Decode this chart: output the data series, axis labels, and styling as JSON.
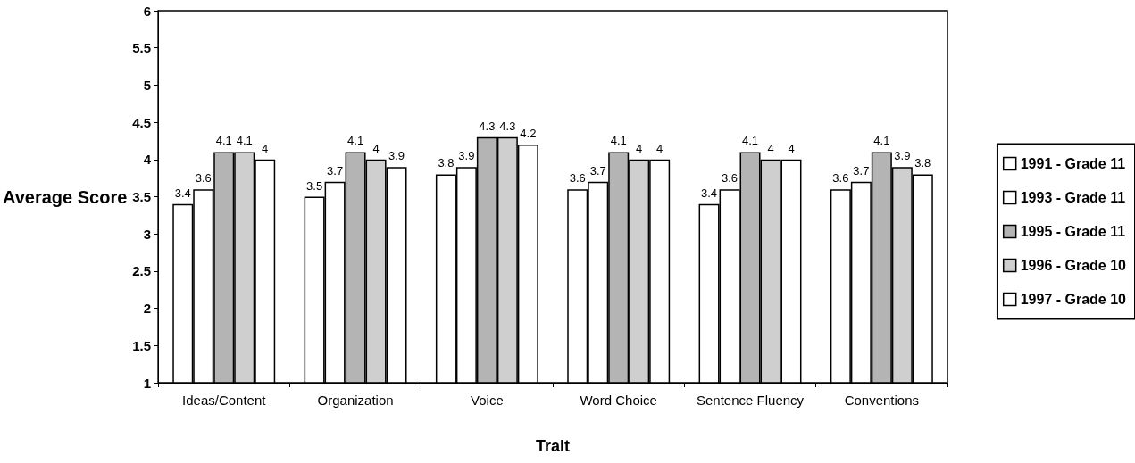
{
  "chart_data": {
    "type": "bar",
    "xlabel": "Trait",
    "ylabel": "Average Score",
    "categories": [
      "Ideas/Content",
      "Organization",
      "Voice",
      "Word Choice",
      "Sentence Fluency",
      "Conventions"
    ],
    "series": [
      {
        "name": "1991 - Grade 11",
        "color": "#ffffff",
        "values": [
          3.4,
          3.5,
          3.8,
          3.6,
          3.4,
          3.6
        ]
      },
      {
        "name": "1993 - Grade 11",
        "color": "#ffffff",
        "values": [
          3.6,
          3.7,
          3.9,
          3.7,
          3.6,
          3.7
        ]
      },
      {
        "name": "1995 - Grade 11",
        "color": "#b4b4b4",
        "values": [
          4.1,
          4.1,
          4.3,
          4.1,
          4.1,
          4.1
        ]
      },
      {
        "name": "1996 - Grade 10",
        "color": "#cfcfcf",
        "values": [
          4.1,
          4,
          4.3,
          4,
          4,
          3.9
        ]
      },
      {
        "name": "1997 - Grade 10",
        "color": "#ffffff",
        "values": [
          4,
          3.9,
          4.2,
          4,
          4,
          3.8
        ]
      }
    ],
    "ylim": [
      1,
      6
    ],
    "yticks": [
      1,
      1.5,
      2,
      2.5,
      3,
      3.5,
      4,
      4.5,
      5,
      5.5,
      6
    ],
    "data_labels": true,
    "grid": false,
    "legend": "right"
  }
}
